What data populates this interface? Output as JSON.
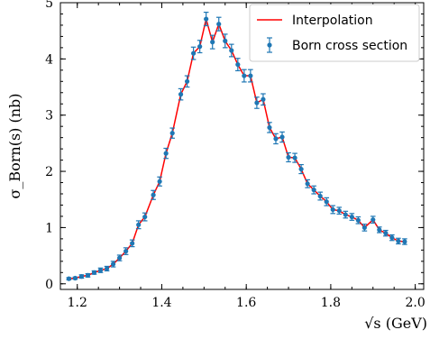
{
  "chart_data": {
    "type": "line",
    "xlabel": "√s (GeV)",
    "ylabel": "σ_Born(s) (nb)",
    "xlim": [
      1.16,
      2.02
    ],
    "ylim": [
      -0.1,
      5.0
    ],
    "x_ticks": [
      "1.2",
      "1.4",
      "1.6",
      "1.8",
      "2.0"
    ],
    "y_ticks": [
      "0",
      "1",
      "2",
      "3",
      "4",
      "5"
    ],
    "legend_position": "top-right",
    "series": [
      {
        "name": "Interpolation",
        "kind": "line",
        "color": "#ff0000",
        "x": [
          1.18,
          1.195,
          1.21,
          1.225,
          1.24,
          1.255,
          1.27,
          1.285,
          1.3,
          1.315,
          1.33,
          1.345,
          1.36,
          1.38,
          1.395,
          1.41,
          1.425,
          1.445,
          1.46,
          1.475,
          1.49,
          1.505,
          1.52,
          1.535,
          1.55,
          1.565,
          1.58,
          1.595,
          1.61,
          1.625,
          1.64,
          1.655,
          1.67,
          1.685,
          1.7,
          1.715,
          1.73,
          1.745,
          1.76,
          1.775,
          1.79,
          1.805,
          1.82,
          1.835,
          1.85,
          1.865,
          1.88,
          1.9,
          1.915,
          1.93,
          1.945,
          1.96,
          1.975
        ],
        "y": [
          0.09,
          0.1,
          0.13,
          0.15,
          0.2,
          0.24,
          0.27,
          0.35,
          0.46,
          0.58,
          0.72,
          1.05,
          1.19,
          1.58,
          1.82,
          2.32,
          2.68,
          3.37,
          3.6,
          4.1,
          4.22,
          4.71,
          4.3,
          4.62,
          4.32,
          4.15,
          3.9,
          3.7,
          3.7,
          3.22,
          3.28,
          2.78,
          2.58,
          2.61,
          2.25,
          2.24,
          2.04,
          1.78,
          1.67,
          1.56,
          1.46,
          1.32,
          1.3,
          1.23,
          1.19,
          1.13,
          1.0,
          1.14,
          0.96,
          0.9,
          0.82,
          0.76,
          0.75
        ]
      },
      {
        "name": "Born cross section",
        "kind": "errorbar",
        "color": "#1f77b4",
        "x": [
          1.18,
          1.195,
          1.21,
          1.225,
          1.24,
          1.255,
          1.27,
          1.285,
          1.3,
          1.315,
          1.33,
          1.345,
          1.36,
          1.38,
          1.395,
          1.41,
          1.425,
          1.445,
          1.46,
          1.475,
          1.49,
          1.505,
          1.52,
          1.535,
          1.55,
          1.565,
          1.58,
          1.595,
          1.61,
          1.625,
          1.64,
          1.655,
          1.67,
          1.685,
          1.7,
          1.715,
          1.73,
          1.745,
          1.76,
          1.775,
          1.79,
          1.805,
          1.82,
          1.835,
          1.85,
          1.865,
          1.88,
          1.9,
          1.915,
          1.93,
          1.945,
          1.96,
          1.975
        ],
        "y": [
          0.09,
          0.1,
          0.13,
          0.15,
          0.2,
          0.24,
          0.27,
          0.35,
          0.46,
          0.58,
          0.72,
          1.05,
          1.19,
          1.58,
          1.82,
          2.32,
          2.68,
          3.37,
          3.6,
          4.1,
          4.22,
          4.71,
          4.3,
          4.62,
          4.32,
          4.15,
          3.9,
          3.7,
          3.7,
          3.22,
          3.28,
          2.78,
          2.58,
          2.61,
          2.25,
          2.24,
          2.04,
          1.78,
          1.67,
          1.56,
          1.46,
          1.32,
          1.3,
          1.23,
          1.19,
          1.13,
          1.0,
          1.14,
          0.96,
          0.9,
          0.82,
          0.76,
          0.75
        ],
        "err": [
          0.02,
          0.02,
          0.03,
          0.03,
          0.03,
          0.04,
          0.04,
          0.05,
          0.05,
          0.06,
          0.06,
          0.07,
          0.07,
          0.08,
          0.08,
          0.09,
          0.09,
          0.1,
          0.1,
          0.11,
          0.11,
          0.12,
          0.12,
          0.12,
          0.12,
          0.11,
          0.11,
          0.11,
          0.11,
          0.1,
          0.1,
          0.09,
          0.09,
          0.09,
          0.08,
          0.08,
          0.08,
          0.07,
          0.07,
          0.07,
          0.07,
          0.07,
          0.06,
          0.06,
          0.06,
          0.06,
          0.06,
          0.06,
          0.05,
          0.05,
          0.05,
          0.05,
          0.05
        ]
      }
    ]
  }
}
